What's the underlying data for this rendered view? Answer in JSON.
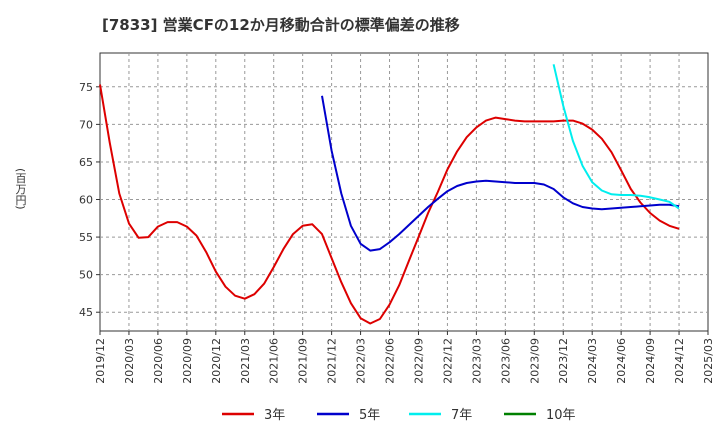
{
  "chart_data": {
    "type": "line",
    "title": "[7833]  営業CFの12か月移動合計の標準偏差の推移",
    "ylabel": "(百万円)",
    "xlabel": "",
    "ylim": [
      42.5,
      79.5
    ],
    "yticks": [
      45,
      50,
      55,
      60,
      65,
      70,
      75
    ],
    "x_ticks": [
      "2019/12",
      "2020/03",
      "2020/06",
      "2020/09",
      "2020/12",
      "2021/03",
      "2021/06",
      "2021/09",
      "2021/12",
      "2022/03",
      "2022/06",
      "2022/09",
      "2022/12",
      "2023/03",
      "2023/06",
      "2023/09",
      "2023/12",
      "2024/03",
      "2024/06",
      "2024/09",
      "2024/12",
      "2025/03"
    ],
    "grid": true,
    "legend_position": "bottom",
    "series": [
      {
        "name": "3年",
        "color": "#dd0000",
        "points": [
          [
            "2019/12",
            75.3
          ],
          [
            "2020/01",
            67.6
          ],
          [
            "2020/02",
            60.8
          ],
          [
            "2020/03",
            56.8
          ],
          [
            "2020/04",
            54.9
          ],
          [
            "2020/05",
            55.0
          ],
          [
            "2020/06",
            56.4
          ],
          [
            "2020/07",
            57.0
          ],
          [
            "2020/08",
            57.0
          ],
          [
            "2020/09",
            56.4
          ],
          [
            "2020/10",
            55.2
          ],
          [
            "2020/11",
            53.0
          ],
          [
            "2020/12",
            50.4
          ],
          [
            "2021/01",
            48.4
          ],
          [
            "2021/02",
            47.2
          ],
          [
            "2021/03",
            46.8
          ],
          [
            "2021/04",
            47.4
          ],
          [
            "2021/05",
            48.8
          ],
          [
            "2021/06",
            51.0
          ],
          [
            "2021/07",
            53.4
          ],
          [
            "2021/08",
            55.4
          ],
          [
            "2021/09",
            56.5
          ],
          [
            "2021/10",
            56.7
          ],
          [
            "2021/11",
            55.4
          ],
          [
            "2021/12",
            52.2
          ],
          [
            "2022/01",
            49.0
          ],
          [
            "2022/02",
            46.2
          ],
          [
            "2022/03",
            44.2
          ],
          [
            "2022/04",
            43.5
          ],
          [
            "2022/05",
            44.1
          ],
          [
            "2022/06",
            46.0
          ],
          [
            "2022/07",
            48.6
          ],
          [
            "2022/08",
            51.8
          ],
          [
            "2022/09",
            55.0
          ],
          [
            "2022/10",
            58.2
          ],
          [
            "2022/11",
            61.0
          ],
          [
            "2022/12",
            64.0
          ],
          [
            "2023/01",
            66.4
          ],
          [
            "2023/02",
            68.3
          ],
          [
            "2023/03",
            69.6
          ],
          [
            "2023/04",
            70.5
          ],
          [
            "2023/05",
            70.9
          ],
          [
            "2023/06",
            70.7
          ],
          [
            "2023/07",
            70.5
          ],
          [
            "2023/08",
            70.4
          ],
          [
            "2023/09",
            70.4
          ],
          [
            "2023/10",
            70.4
          ],
          [
            "2023/11",
            70.4
          ],
          [
            "2023/12",
            70.5
          ],
          [
            "2024/01",
            70.5
          ],
          [
            "2024/02",
            70.1
          ],
          [
            "2024/03",
            69.3
          ],
          [
            "2024/04",
            68.1
          ],
          [
            "2024/05",
            66.3
          ],
          [
            "2024/06",
            63.9
          ],
          [
            "2024/07",
            61.4
          ],
          [
            "2024/08",
            59.6
          ],
          [
            "2024/09",
            58.2
          ],
          [
            "2024/10",
            57.2
          ],
          [
            "2024/11",
            56.5
          ],
          [
            "2024/12",
            56.1
          ]
        ]
      },
      {
        "name": "5年",
        "color": "#0000cc",
        "points": [
          [
            "2021/11",
            73.8
          ],
          [
            "2021/12",
            66.5
          ],
          [
            "2022/01",
            60.8
          ],
          [
            "2022/02",
            56.5
          ],
          [
            "2022/03",
            54.1
          ],
          [
            "2022/04",
            53.2
          ],
          [
            "2022/05",
            53.4
          ],
          [
            "2022/06",
            54.3
          ],
          [
            "2022/07",
            55.4
          ],
          [
            "2022/08",
            56.6
          ],
          [
            "2022/09",
            57.8
          ],
          [
            "2022/10",
            59.0
          ],
          [
            "2022/11",
            60.1
          ],
          [
            "2022/12",
            61.1
          ],
          [
            "2023/01",
            61.8
          ],
          [
            "2023/02",
            62.2
          ],
          [
            "2023/03",
            62.4
          ],
          [
            "2023/04",
            62.5
          ],
          [
            "2023/05",
            62.4
          ],
          [
            "2023/06",
            62.3
          ],
          [
            "2023/07",
            62.2
          ],
          [
            "2023/08",
            62.2
          ],
          [
            "2023/09",
            62.2
          ],
          [
            "2023/10",
            62.0
          ],
          [
            "2023/11",
            61.4
          ],
          [
            "2023/12",
            60.3
          ],
          [
            "2024/01",
            59.5
          ],
          [
            "2024/02",
            59.0
          ],
          [
            "2024/03",
            58.8
          ],
          [
            "2024/04",
            58.7
          ],
          [
            "2024/05",
            58.8
          ],
          [
            "2024/06",
            58.9
          ],
          [
            "2024/07",
            59.0
          ],
          [
            "2024/08",
            59.1
          ],
          [
            "2024/09",
            59.2
          ],
          [
            "2024/10",
            59.3
          ],
          [
            "2024/11",
            59.3
          ],
          [
            "2024/12",
            59.1
          ]
        ]
      },
      {
        "name": "7年",
        "color": "#00eeee",
        "points": [
          [
            "2023/11",
            78.0
          ],
          [
            "2023/12",
            72.5
          ],
          [
            "2024/01",
            67.8
          ],
          [
            "2024/02",
            64.5
          ],
          [
            "2024/03",
            62.3
          ],
          [
            "2024/04",
            61.2
          ],
          [
            "2024/05",
            60.7
          ],
          [
            "2024/06",
            60.6
          ],
          [
            "2024/07",
            60.6
          ],
          [
            "2024/08",
            60.5
          ],
          [
            "2024/09",
            60.3
          ],
          [
            "2024/10",
            60.0
          ],
          [
            "2024/11",
            59.7
          ],
          [
            "2024/12",
            58.8
          ]
        ]
      },
      {
        "name": "10年",
        "color": "#008000",
        "points": []
      }
    ]
  }
}
